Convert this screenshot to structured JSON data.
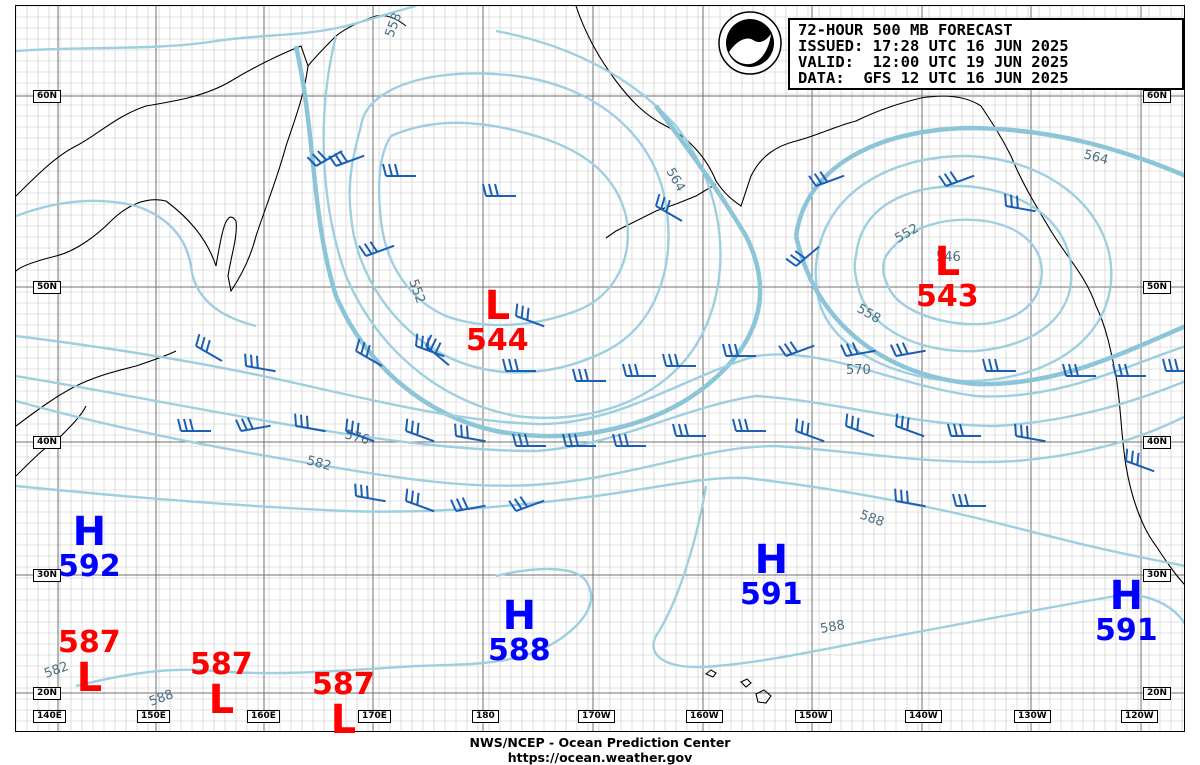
{
  "title": {
    "line1": "72-HOUR 500 MB FORECAST",
    "line2": "ISSUED: 17:28 UTC 16 JUN 2025",
    "line3": "VALID:  12:00 UTC 19 JUN 2025",
    "line4": "DATA:  GFS 12 UTC 16 JUN 2025"
  },
  "logo_text": "NOAA",
  "footer": {
    "org": "NWS/NCEP - Ocean Prediction Center",
    "url": "https://ocean.weather.gov"
  },
  "latitudes": [
    "60N",
    "50N",
    "40N",
    "30N",
    "20N"
  ],
  "longitudes": [
    "140E",
    "150E",
    "160E",
    "170E",
    "180",
    "170W",
    "160W",
    "150W",
    "140W",
    "130W",
    "120W"
  ],
  "contour_labels": [
    "558",
    "564",
    "552",
    "546",
    "552",
    "558",
    "564",
    "570",
    "576",
    "582",
    "588",
    "588",
    "588",
    "582"
  ],
  "pressure_systems": [
    {
      "type": "H",
      "value": "592",
      "color": "blue"
    },
    {
      "type": "H",
      "value": "588",
      "color": "blue"
    },
    {
      "type": "H",
      "value": "591",
      "color": "blue"
    },
    {
      "type": "H",
      "value": "591",
      "color": "blue"
    },
    {
      "type": "L",
      "value": "544",
      "color": "red"
    },
    {
      "type": "L",
      "value": "543",
      "color": "red"
    },
    {
      "type": "L",
      "value": "587",
      "color": "red"
    },
    {
      "type": "L",
      "value": "587",
      "color": "red"
    },
    {
      "type": "L",
      "value": "587",
      "color": "red"
    }
  ],
  "colors": {
    "contour": "#9ecfe0",
    "contour_bold": "#8cc4d8",
    "wind_barb": "#1a5fb4",
    "high": "#0000ff",
    "low": "#ff0000",
    "grid": "#c8c8c8",
    "coast": "#000000"
  }
}
